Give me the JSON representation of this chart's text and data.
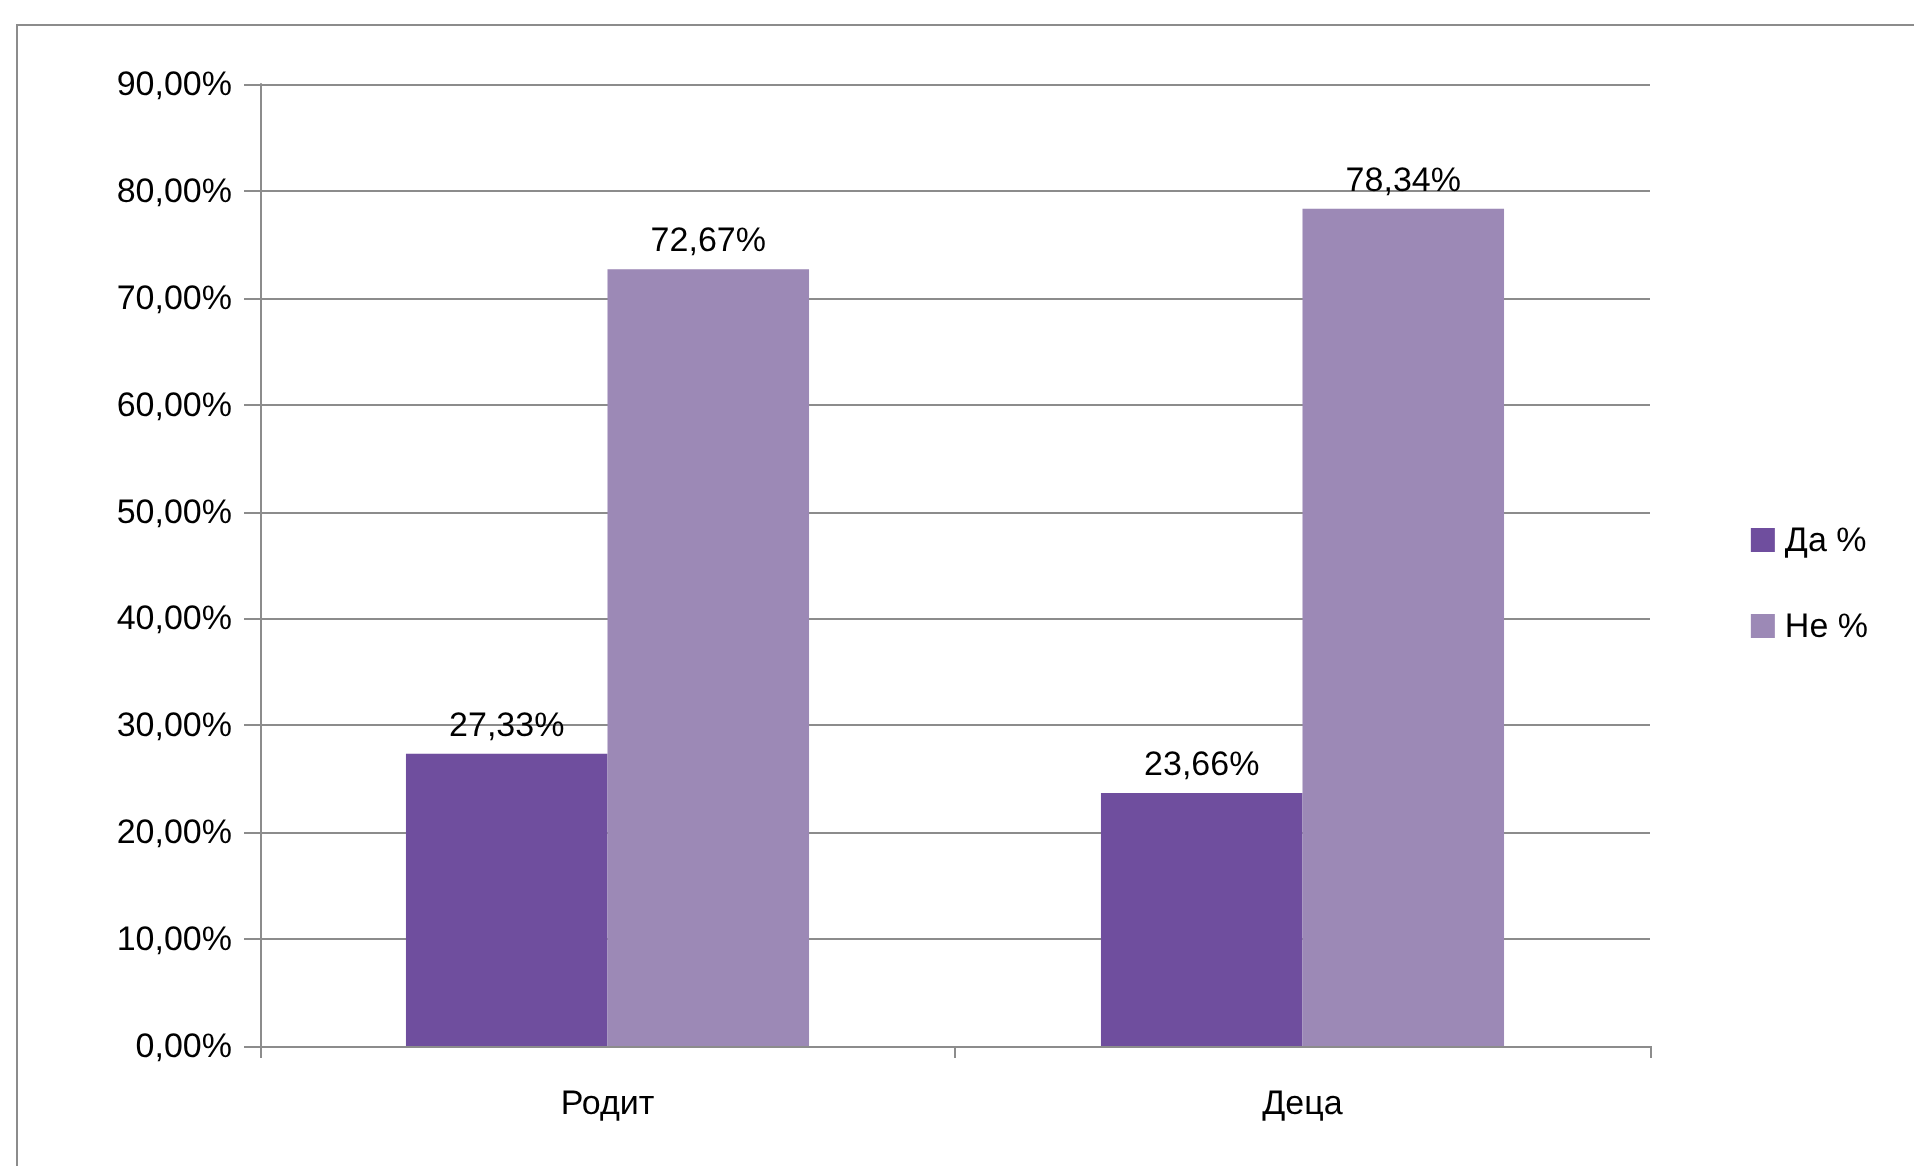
{
  "chart_data": {
    "type": "bar",
    "categories": [
      "Родит",
      "Деца"
    ],
    "series": [
      {
        "name": "Да %",
        "color": "#6f4e9e",
        "values": [
          27.33,
          23.66
        ],
        "value_labels": [
          "27,33%",
          "23,66%"
        ]
      },
      {
        "name": "Не %",
        "color": "#9c89b6",
        "values": [
          72.67,
          78.34
        ],
        "value_labels": [
          "72,67%",
          "78,34%"
        ]
      }
    ],
    "ylim": [
      0,
      90
    ],
    "yticks": [
      {
        "value": 0,
        "label": "0,00%"
      },
      {
        "value": 10,
        "label": "10,00%"
      },
      {
        "value": 20,
        "label": "20,00%"
      },
      {
        "value": 30,
        "label": "30,00%"
      },
      {
        "value": 40,
        "label": "40,00%"
      },
      {
        "value": 50,
        "label": "50,00%"
      },
      {
        "value": 60,
        "label": "60,00%"
      },
      {
        "value": 70,
        "label": "70,00%"
      },
      {
        "value": 80,
        "label": "80,00%"
      },
      {
        "value": 90,
        "label": "90,00%"
      }
    ],
    "grid": "y",
    "legend": "right"
  }
}
